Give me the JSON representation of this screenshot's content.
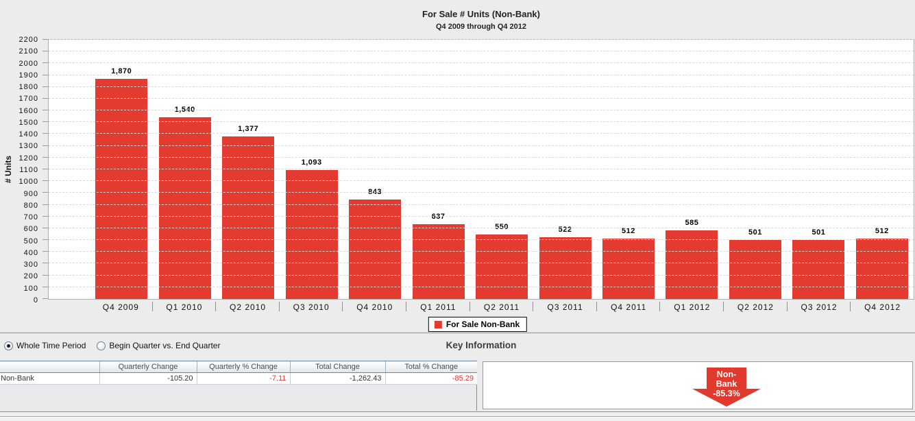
{
  "chart_data": {
    "type": "bar",
    "title": "For Sale # Units (Non-Bank)",
    "subtitle": "Q4 2009 through Q4 2012",
    "ylabel": "# Units",
    "xlabel": "",
    "categories": [
      "Q4 2009",
      "Q1 2010",
      "Q2 2010",
      "Q3 2010",
      "Q4 2010",
      "Q1 2011",
      "Q2 2011",
      "Q3 2011",
      "Q4 2011",
      "Q1 2012",
      "Q2 2012",
      "Q3 2012",
      "Q4 2012"
    ],
    "values": [
      1870,
      1540,
      1377,
      1093,
      843,
      637,
      550,
      522,
      512,
      585,
      501,
      501,
      512
    ],
    "value_labels": [
      "1,870",
      "1,540",
      "1,377",
      "1,093",
      "843",
      "637",
      "550",
      "522",
      "512",
      "585",
      "501",
      "501",
      "512"
    ],
    "ylim": [
      0,
      2200
    ],
    "ytick_step": 100,
    "grid": true,
    "legend": [
      "For Sale Non-Bank"
    ],
    "legend_position": "bottom",
    "bar_color": "#e43b31"
  },
  "legend": {
    "label": "For Sale Non-Bank"
  },
  "controls": {
    "radios": [
      {
        "label": "Whole Time Period",
        "selected": true
      },
      {
        "label": "Begin Quarter vs. End Quarter",
        "selected": false
      }
    ],
    "key_information_title": "Key Information"
  },
  "table": {
    "headers": [
      "",
      "Quarterly Change",
      "Quarterly % Change",
      "Total Change",
      "Total % Change"
    ],
    "rows": [
      [
        "Non-Bank",
        "-105.20",
        "-7.11",
        "-1,262.43",
        "-85.29"
      ]
    ],
    "negative_color": "#e0352b"
  },
  "key_info": {
    "arrow": {
      "lines": [
        "Non-",
        "Bank",
        "-85.3%"
      ],
      "direction": "down",
      "color": "#e03a2f"
    }
  }
}
